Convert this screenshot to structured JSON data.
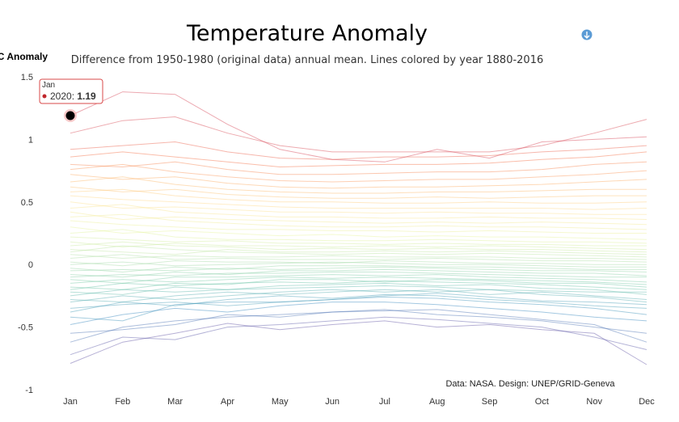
{
  "chart_data": {
    "type": "line",
    "title": "Temperature Anomaly",
    "subtitle": "Difference from 1950-1980 (original data) annual mean. Lines colored by year 1880-2016",
    "ylabel": "°C Anomaly",
    "xlabel": "",
    "categories": [
      "Jan",
      "Feb",
      "Mar",
      "Apr",
      "May",
      "Jun",
      "Jul",
      "Aug",
      "Sep",
      "Oct",
      "Nov",
      "Dec"
    ],
    "ylim": [
      -1,
      1.5
    ],
    "yticks": [
      -1,
      -0.5,
      0,
      0.5,
      1,
      1.5
    ],
    "ytick_labels": [
      "-1",
      "-0.5",
      "0",
      "0.5",
      "1",
      "1.5"
    ],
    "grid": false,
    "legend": "none",
    "credit": "Data: NASA. Design: UNEP/GRID-Geneva",
    "color_scale": [
      "#5e4fa2",
      "#3288bd",
      "#66c2a5",
      "#abdda4",
      "#e6f598",
      "#fee08b",
      "#fdae61",
      "#f46d43",
      "#d53e4f"
    ],
    "series": [
      {
        "values": [
          -0.79,
          -0.62,
          -0.55,
          -0.47,
          -0.52,
          -0.48,
          -0.45,
          -0.5,
          -0.48,
          -0.52,
          -0.55,
          -0.8
        ]
      },
      {
        "values": [
          -0.72,
          -0.58,
          -0.6,
          -0.5,
          -0.48,
          -0.45,
          -0.42,
          -0.44,
          -0.47,
          -0.5,
          -0.58,
          -0.68
        ]
      },
      {
        "values": [
          -0.62,
          -0.5,
          -0.45,
          -0.42,
          -0.4,
          -0.38,
          -0.37,
          -0.36,
          -0.4,
          -0.44,
          -0.48,
          -0.62
        ]
      },
      {
        "values": [
          -0.55,
          -0.52,
          -0.48,
          -0.4,
          -0.42,
          -0.38,
          -0.36,
          -0.4,
          -0.42,
          -0.45,
          -0.5,
          -0.55
        ]
      },
      {
        "values": [
          -0.48,
          -0.4,
          -0.35,
          -0.38,
          -0.33,
          -0.3,
          -0.3,
          -0.32,
          -0.35,
          -0.38,
          -0.42,
          -0.45
        ]
      },
      {
        "values": [
          -0.42,
          -0.45,
          -0.32,
          -0.3,
          -0.3,
          -0.28,
          -0.26,
          -0.27,
          -0.3,
          -0.32,
          -0.35,
          -0.4
        ]
      },
      {
        "values": [
          -0.38,
          -0.3,
          -0.33,
          -0.28,
          -0.25,
          -0.27,
          -0.24,
          -0.25,
          -0.28,
          -0.3,
          -0.33,
          -0.35
        ]
      },
      {
        "values": [
          -0.35,
          -0.32,
          -0.3,
          -0.33,
          -0.3,
          -0.28,
          -0.25,
          -0.23,
          -0.26,
          -0.29,
          -0.3,
          -0.32
        ]
      },
      {
        "values": [
          -0.3,
          -0.25,
          -0.28,
          -0.25,
          -0.22,
          -0.2,
          -0.22,
          -0.2,
          -0.24,
          -0.22,
          -0.25,
          -0.28
        ]
      },
      {
        "values": [
          -0.28,
          -0.3,
          -0.25,
          -0.22,
          -0.24,
          -0.22,
          -0.2,
          -0.22,
          -0.2,
          -0.24,
          -0.26,
          -0.3
        ]
      },
      {
        "values": [
          -0.25,
          -0.2,
          -0.22,
          -0.2,
          -0.19,
          -0.18,
          -0.17,
          -0.18,
          -0.2,
          -0.21,
          -0.22,
          -0.22
        ]
      },
      {
        "values": [
          -0.22,
          -0.24,
          -0.18,
          -0.2,
          -0.17,
          -0.16,
          -0.15,
          -0.17,
          -0.16,
          -0.19,
          -0.2,
          -0.24
        ]
      },
      {
        "values": [
          -0.2,
          -0.15,
          -0.17,
          -0.15,
          -0.14,
          -0.15,
          -0.13,
          -0.14,
          -0.15,
          -0.16,
          -0.18,
          -0.2
        ]
      },
      {
        "values": [
          -0.18,
          -0.2,
          -0.15,
          -0.16,
          -0.12,
          -0.12,
          -0.14,
          -0.12,
          -0.13,
          -0.15,
          -0.15,
          -0.18
        ]
      },
      {
        "values": [
          -0.15,
          -0.12,
          -0.14,
          -0.12,
          -0.1,
          -0.11,
          -0.1,
          -0.11,
          -0.12,
          -0.13,
          -0.14,
          -0.16
        ]
      },
      {
        "values": [
          -0.12,
          -0.15,
          -0.1,
          -0.1,
          -0.09,
          -0.08,
          -0.09,
          -0.08,
          -0.1,
          -0.11,
          -0.12,
          -0.14
        ]
      },
      {
        "values": [
          -0.1,
          -0.08,
          -0.09,
          -0.07,
          -0.07,
          -0.06,
          -0.06,
          -0.07,
          -0.08,
          -0.09,
          -0.1,
          -0.1
        ]
      },
      {
        "values": [
          -0.08,
          -0.1,
          -0.06,
          -0.08,
          -0.05,
          -0.05,
          -0.04,
          -0.05,
          -0.06,
          -0.07,
          -0.07,
          -0.09
        ]
      },
      {
        "values": [
          -0.05,
          -0.04,
          -0.05,
          -0.03,
          -0.04,
          -0.03,
          -0.02,
          -0.03,
          -0.04,
          -0.05,
          -0.05,
          -0.06
        ]
      },
      {
        "values": [
          -0.03,
          -0.06,
          -0.02,
          -0.04,
          -0.01,
          -0.01,
          -0.01,
          -0.02,
          -0.02,
          -0.03,
          -0.04,
          -0.04
        ]
      },
      {
        "values": [
          0.0,
          0.02,
          -0.01,
          0.0,
          0.01,
          0.02,
          0.01,
          0.0,
          0.0,
          -0.01,
          -0.02,
          -0.02
        ]
      },
      {
        "values": [
          0.02,
          -0.01,
          0.03,
          0.02,
          0.02,
          0.01,
          0.03,
          0.02,
          0.01,
          0.01,
          0.0,
          0.0
        ]
      },
      {
        "values": [
          0.05,
          0.08,
          0.04,
          0.05,
          0.04,
          0.04,
          0.04,
          0.05,
          0.04,
          0.03,
          0.03,
          0.02
        ]
      },
      {
        "values": [
          0.08,
          0.05,
          0.07,
          0.06,
          0.06,
          0.07,
          0.06,
          0.06,
          0.06,
          0.05,
          0.05,
          0.04
        ]
      },
      {
        "values": [
          0.1,
          0.15,
          0.12,
          0.1,
          0.09,
          0.08,
          0.09,
          0.08,
          0.09,
          0.08,
          0.07,
          0.06
        ]
      },
      {
        "values": [
          0.12,
          0.1,
          0.08,
          0.12,
          0.1,
          0.1,
          0.11,
          0.1,
          0.11,
          0.1,
          0.09,
          0.08
        ]
      },
      {
        "values": [
          0.15,
          0.18,
          0.15,
          0.14,
          0.12,
          0.13,
          0.12,
          0.13,
          0.12,
          0.12,
          0.11,
          0.1
        ]
      },
      {
        "values": [
          0.18,
          0.14,
          0.17,
          0.15,
          0.15,
          0.14,
          0.15,
          0.14,
          0.15,
          0.14,
          0.13,
          0.12
        ]
      },
      {
        "values": [
          0.22,
          0.2,
          0.18,
          0.19,
          0.17,
          0.17,
          0.16,
          0.17,
          0.16,
          0.16,
          0.15,
          0.15
        ]
      },
      {
        "values": [
          0.25,
          0.28,
          0.22,
          0.2,
          0.2,
          0.19,
          0.19,
          0.2,
          0.19,
          0.18,
          0.18,
          0.17
        ]
      },
      {
        "values": [
          0.3,
          0.25,
          0.27,
          0.25,
          0.23,
          0.24,
          0.22,
          0.23,
          0.22,
          0.22,
          0.21,
          0.2
        ]
      },
      {
        "values": [
          0.35,
          0.32,
          0.3,
          0.28,
          0.28,
          0.27,
          0.27,
          0.26,
          0.27,
          0.26,
          0.25,
          0.25
        ]
      },
      {
        "values": [
          0.38,
          0.4,
          0.35,
          0.33,
          0.31,
          0.3,
          0.3,
          0.31,
          0.3,
          0.3,
          0.29,
          0.28
        ]
      },
      {
        "values": [
          0.42,
          0.36,
          0.38,
          0.36,
          0.35,
          0.34,
          0.33,
          0.34,
          0.33,
          0.34,
          0.33,
          0.32
        ]
      },
      {
        "values": [
          0.45,
          0.48,
          0.42,
          0.4,
          0.38,
          0.38,
          0.37,
          0.37,
          0.38,
          0.37,
          0.37,
          0.36
        ]
      },
      {
        "values": [
          0.5,
          0.45,
          0.46,
          0.44,
          0.42,
          0.42,
          0.41,
          0.42,
          0.41,
          0.41,
          0.4,
          0.4
        ]
      },
      {
        "values": [
          0.55,
          0.52,
          0.5,
          0.48,
          0.46,
          0.45,
          0.45,
          0.45,
          0.45,
          0.45,
          0.44,
          0.45
        ]
      },
      {
        "values": [
          0.58,
          0.6,
          0.55,
          0.52,
          0.5,
          0.5,
          0.49,
          0.49,
          0.5,
          0.49,
          0.49,
          0.5
        ]
      },
      {
        "values": [
          0.62,
          0.58,
          0.6,
          0.56,
          0.54,
          0.53,
          0.53,
          0.54,
          0.53,
          0.54,
          0.55,
          0.55
        ]
      },
      {
        "values": [
          0.66,
          0.7,
          0.64,
          0.6,
          0.58,
          0.57,
          0.57,
          0.58,
          0.58,
          0.59,
          0.6,
          0.6
        ]
      },
      {
        "values": [
          0.72,
          0.68,
          0.7,
          0.65,
          0.62,
          0.61,
          0.62,
          0.62,
          0.63,
          0.64,
          0.66,
          0.68
        ]
      },
      {
        "values": [
          0.76,
          0.8,
          0.74,
          0.7,
          0.67,
          0.66,
          0.67,
          0.68,
          0.68,
          0.7,
          0.72,
          0.75
        ]
      },
      {
        "values": [
          0.8,
          0.78,
          0.82,
          0.76,
          0.72,
          0.72,
          0.73,
          0.74,
          0.74,
          0.76,
          0.8,
          0.82
        ]
      },
      {
        "values": [
          0.86,
          0.9,
          0.86,
          0.82,
          0.78,
          0.79,
          0.8,
          0.8,
          0.81,
          0.84,
          0.86,
          0.9
        ]
      },
      {
        "values": [
          0.92,
          0.95,
          0.98,
          0.9,
          0.85,
          0.84,
          0.86,
          0.86,
          0.87,
          0.9,
          0.92,
          0.95
        ]
      },
      {
        "values": [
          1.05,
          1.15,
          1.18,
          1.05,
          0.95,
          0.9,
          0.9,
          0.9,
          0.9,
          0.95,
          1.05,
          1.16
        ]
      },
      {
        "values": [
          1.19,
          1.38,
          1.36,
          1.12,
          0.92,
          0.84,
          0.82,
          0.92,
          0.85,
          0.98,
          1.0,
          1.02
        ]
      }
    ]
  },
  "tooltip": {
    "month": "Jan",
    "series_label": "2020",
    "value": "1.19"
  },
  "download_icon": "download-icon"
}
